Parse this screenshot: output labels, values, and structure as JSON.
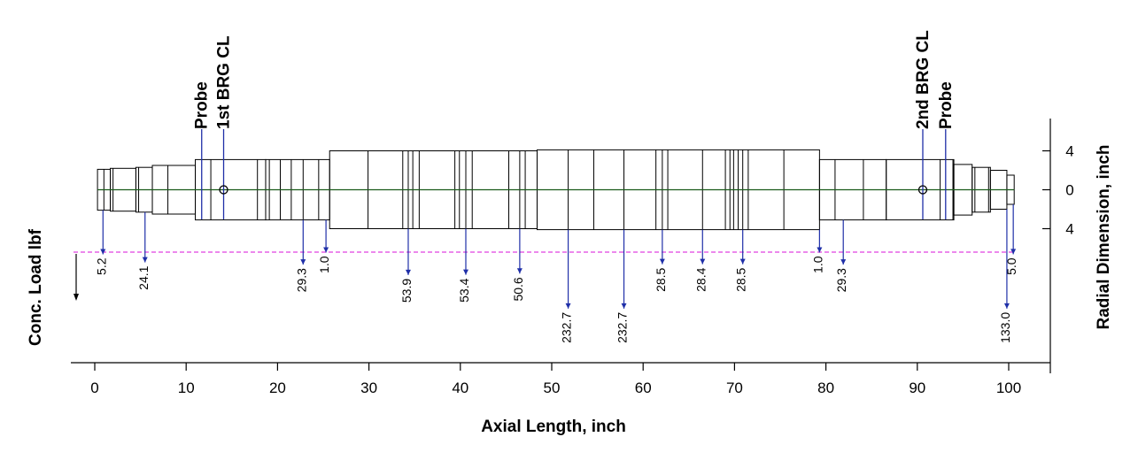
{
  "labels": {
    "x_axis_title": "Axial Length, inch",
    "y_axis_right_title": "Radial Dimension, inch",
    "y_axis_left_title": "Conc. Load lbf",
    "probe_left": "Probe",
    "brg1": "1st BRG CL",
    "brg2": "2nd BRG CL",
    "probe_right": "Probe"
  },
  "x_ticks": [
    "0",
    "10",
    "20",
    "30",
    "40",
    "50",
    "60",
    "70",
    "80",
    "90",
    "100"
  ],
  "y_ticks": [
    "4",
    "0",
    "4"
  ],
  "colors": {
    "shaft_outline": "#000000",
    "centerline": "#1a5a1a",
    "load_arrow": "#1f2fa8",
    "load_baseline": "#e040e0"
  },
  "shaft_sections": [
    {
      "x0": 0.3,
      "x1": 1.7,
      "r": 2.1
    },
    {
      "x0": 1.7,
      "x1": 4.5,
      "r": 2.2
    },
    {
      "x0": 4.5,
      "x1": 6.3,
      "r": 2.3
    },
    {
      "x0": 6.3,
      "x1": 11.0,
      "r": 2.5
    },
    {
      "x0": 11.0,
      "x1": 18.7,
      "r": 3.1
    },
    {
      "x0": 18.7,
      "x1": 25.7,
      "r": 3.1
    },
    {
      "x0": 25.7,
      "x1": 48.4,
      "r": 4.0
    },
    {
      "x0": 48.4,
      "x1": 79.3,
      "r": 4.1
    },
    {
      "x0": 79.3,
      "x1": 86.6,
      "r": 3.1
    },
    {
      "x0": 86.6,
      "x1": 94.0,
      "r": 3.1
    },
    {
      "x0": 94.0,
      "x1": 96.0,
      "r": 2.6
    },
    {
      "x0": 96.0,
      "x1": 98.0,
      "r": 2.3
    },
    {
      "x0": 98.0,
      "x1": 99.8,
      "r": 2.0
    },
    {
      "x0": 99.8,
      "x1": 100.6,
      "r": 1.5
    }
  ],
  "station_lines": [
    1.0,
    2.0,
    4.8,
    8.0,
    12.7,
    17.8,
    19.1,
    20.3,
    21.5,
    22.8,
    24.5,
    29.9,
    33.7,
    34.3,
    34.8,
    35.5,
    39.4,
    39.9,
    40.6,
    41.3,
    45.3,
    46.5,
    47.1,
    51.8,
    54.6,
    57.9,
    61.4,
    62.1,
    62.7,
    66.5,
    69.0,
    69.5,
    69.9,
    70.4,
    70.9,
    71.5,
    75.4,
    81.0,
    84.1,
    92.5,
    93.9,
    96.3,
    97.8
  ],
  "probes": [
    {
      "x": 11.7,
      "label_key": "probe_left"
    },
    {
      "x": 93.1,
      "label_key": "probe_right"
    }
  ],
  "bearings": [
    {
      "x": 14.1,
      "label_key": "brg1"
    },
    {
      "x": 90.6,
      "label_key": "brg2"
    }
  ],
  "loads": [
    {
      "x": 0.9,
      "value": "5.2"
    },
    {
      "x": 5.5,
      "value": "24.1"
    },
    {
      "x": 22.8,
      "value": "29.3"
    },
    {
      "x": 25.3,
      "value": "1.0"
    },
    {
      "x": 34.3,
      "value": "53.9"
    },
    {
      "x": 40.6,
      "value": "53.4"
    },
    {
      "x": 46.5,
      "value": "50.6"
    },
    {
      "x": 51.8,
      "value": "232.7"
    },
    {
      "x": 57.9,
      "value": "232.7"
    },
    {
      "x": 62.1,
      "value": "28.5"
    },
    {
      "x": 66.5,
      "value": "28.4"
    },
    {
      "x": 70.9,
      "value": "28.5"
    },
    {
      "x": 79.3,
      "value": "1.0"
    },
    {
      "x": 81.9,
      "value": "29.3"
    },
    {
      "x": 99.8,
      "value": "133.0"
    },
    {
      "x": 100.5,
      "value": "5.0"
    }
  ]
}
